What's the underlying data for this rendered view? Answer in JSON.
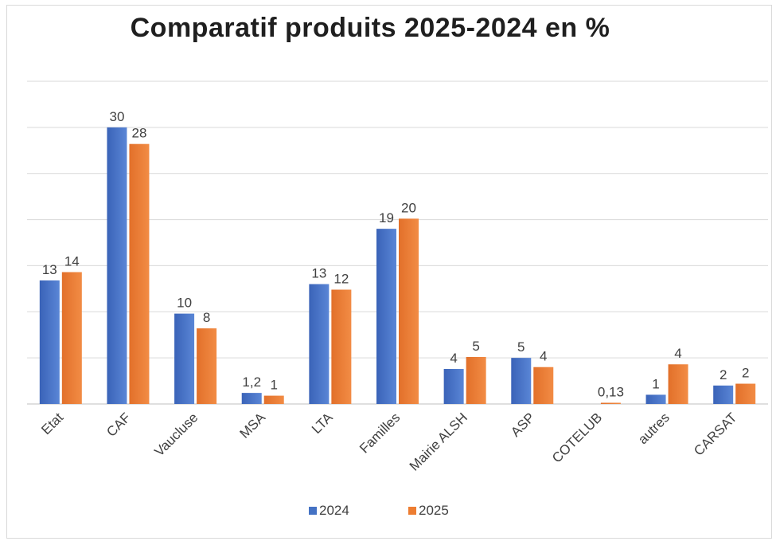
{
  "chart_data": {
    "type": "bar",
    "title": "Comparatif produits 2025-2024 en %",
    "xlabel": "",
    "ylabel": "",
    "ylim": [
      0,
      35
    ],
    "grid": true,
    "legend_position": "bottom",
    "categories": [
      "Etat",
      "CAF",
      "Vaucluse",
      "MSA",
      "LTA",
      "Familles",
      "Mairie ALSH",
      "ASP",
      "COTELUB",
      "autres",
      "CARSAT"
    ],
    "series": [
      {
        "name": "2024",
        "color": "#4472c4",
        "values": [
          13.4,
          30,
          9.8,
          1.2,
          13,
          19,
          3.8,
          5,
          0,
          1,
          2
        ],
        "labels": [
          "13",
          "30",
          "10",
          "1,2",
          "13",
          "19",
          "4",
          "5",
          "",
          "1",
          "2"
        ]
      },
      {
        "name": "2025",
        "color": "#ed7d31",
        "values": [
          14.3,
          28.2,
          8.2,
          0.9,
          12.4,
          20.1,
          5.1,
          4,
          0.13,
          4.3,
          2.2
        ],
        "labels": [
          "14",
          "28",
          "8",
          "1",
          "12",
          "20",
          "5",
          "4",
          "0,13",
          "4",
          "2"
        ]
      }
    ]
  }
}
